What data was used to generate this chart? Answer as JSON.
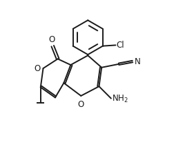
{
  "bg_color": "#ffffff",
  "line_color": "#1a1a1a",
  "line_width": 1.4,
  "font_size_label": 8.5,
  "figsize": [
    2.52,
    2.13
  ],
  "dpi": 100,
  "xlim": [
    0,
    10
  ],
  "ylim": [
    0,
    8.5
  ]
}
